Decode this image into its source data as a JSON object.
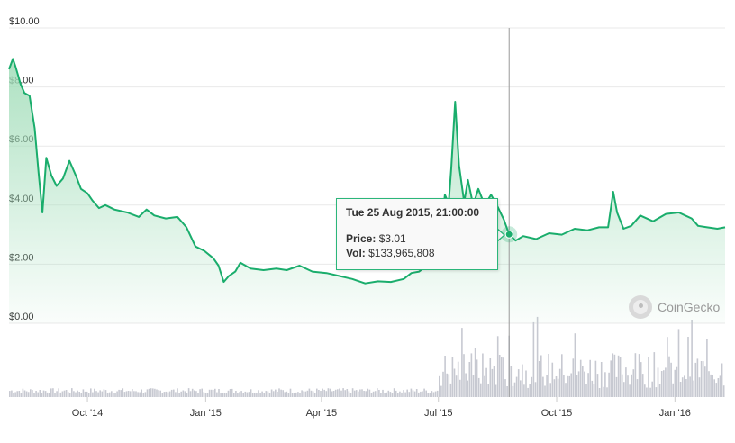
{
  "chart_data": {
    "type": "line",
    "title": "",
    "xlabel": "",
    "ylabel": "",
    "ylim": [
      0,
      10
    ],
    "grid": true,
    "y_ticks": [
      "$0.00",
      "$2.00",
      "$4.00",
      "$6.00",
      "$8.00",
      "$10.00"
    ],
    "x_ticks": [
      "Oct '14",
      "Jan '15",
      "Apr '15",
      "Jul '15",
      "Oct '15",
      "Jan '16"
    ],
    "colors": {
      "line": "#1aad6c",
      "fill": "#bfe9cf",
      "volume": "#c7c9d1",
      "crosshair": "#9a9a9a"
    },
    "series": [
      {
        "name": "Price",
        "points": [
          [
            "2014-08-01",
            8.6
          ],
          [
            "2014-08-04",
            8.95
          ],
          [
            "2014-08-06",
            8.7
          ],
          [
            "2014-08-08",
            8.4
          ],
          [
            "2014-08-10",
            8.1
          ],
          [
            "2014-08-13",
            7.8
          ],
          [
            "2014-08-17",
            7.7
          ],
          [
            "2014-08-21",
            6.6
          ],
          [
            "2014-08-24",
            5.1
          ],
          [
            "2014-08-27",
            3.75
          ],
          [
            "2014-08-30",
            5.6
          ],
          [
            "2014-09-03",
            5.0
          ],
          [
            "2014-09-07",
            4.65
          ],
          [
            "2014-09-12",
            4.9
          ],
          [
            "2014-09-17",
            5.5
          ],
          [
            "2014-09-22",
            5.0
          ],
          [
            "2014-09-26",
            4.55
          ],
          [
            "2014-10-01",
            4.4
          ],
          [
            "2014-10-05",
            4.15
          ],
          [
            "2014-10-10",
            3.9
          ],
          [
            "2014-10-15",
            4.0
          ],
          [
            "2014-10-22",
            3.85
          ],
          [
            "2014-11-01",
            3.75
          ],
          [
            "2014-11-10",
            3.6
          ],
          [
            "2014-11-16",
            3.85
          ],
          [
            "2014-11-22",
            3.65
          ],
          [
            "2014-12-01",
            3.55
          ],
          [
            "2014-12-10",
            3.6
          ],
          [
            "2014-12-17",
            3.25
          ],
          [
            "2014-12-24",
            2.6
          ],
          [
            "2014-12-31",
            2.45
          ],
          [
            "2015-01-07",
            2.2
          ],
          [
            "2015-01-11",
            1.95
          ],
          [
            "2015-01-15",
            1.4
          ],
          [
            "2015-01-19",
            1.6
          ],
          [
            "2015-01-24",
            1.75
          ],
          [
            "2015-01-28",
            2.05
          ],
          [
            "2015-02-05",
            1.85
          ],
          [
            "2015-02-15",
            1.8
          ],
          [
            "2015-02-25",
            1.85
          ],
          [
            "2015-03-05",
            1.8
          ],
          [
            "2015-03-15",
            1.95
          ],
          [
            "2015-03-25",
            1.75
          ],
          [
            "2015-04-05",
            1.7
          ],
          [
            "2015-04-15",
            1.6
          ],
          [
            "2015-04-25",
            1.5
          ],
          [
            "2015-05-05",
            1.35
          ],
          [
            "2015-05-15",
            1.42
          ],
          [
            "2015-05-25",
            1.4
          ],
          [
            "2015-06-04",
            1.5
          ],
          [
            "2015-06-10",
            1.7
          ],
          [
            "2015-06-16",
            1.75
          ],
          [
            "2015-06-22",
            1.95
          ],
          [
            "2015-06-28",
            2.35
          ],
          [
            "2015-07-03",
            3.05
          ],
          [
            "2015-07-06",
            4.35
          ],
          [
            "2015-07-09",
            4.05
          ],
          [
            "2015-07-11",
            5.25
          ],
          [
            "2015-07-14",
            7.5
          ],
          [
            "2015-07-17",
            5.35
          ],
          [
            "2015-07-21",
            4.1
          ],
          [
            "2015-07-24",
            4.85
          ],
          [
            "2015-07-28",
            4.0
          ],
          [
            "2015-08-01",
            4.55
          ],
          [
            "2015-08-06",
            4.0
          ],
          [
            "2015-08-11",
            4.35
          ],
          [
            "2015-08-16",
            3.95
          ],
          [
            "2015-08-21",
            3.5
          ],
          [
            "2015-08-25",
            3.01
          ],
          [
            "2015-08-30",
            2.8
          ],
          [
            "2015-09-05",
            2.95
          ],
          [
            "2015-09-15",
            2.85
          ],
          [
            "2015-09-25",
            3.05
          ],
          [
            "2015-10-05",
            3.0
          ],
          [
            "2015-10-15",
            3.2
          ],
          [
            "2015-10-25",
            3.15
          ],
          [
            "2015-11-03",
            3.25
          ],
          [
            "2015-11-10",
            3.25
          ],
          [
            "2015-11-14",
            4.45
          ],
          [
            "2015-11-17",
            3.75
          ],
          [
            "2015-11-22",
            3.2
          ],
          [
            "2015-11-28",
            3.3
          ],
          [
            "2015-12-05",
            3.65
          ],
          [
            "2015-12-15",
            3.45
          ],
          [
            "2015-12-25",
            3.7
          ],
          [
            "2016-01-04",
            3.75
          ],
          [
            "2016-01-14",
            3.55
          ],
          [
            "2016-01-19",
            3.3
          ],
          [
            "2016-01-26",
            3.25
          ],
          [
            "2016-02-03",
            3.2
          ],
          [
            "2016-02-09",
            3.25
          ]
        ]
      },
      {
        "name": "Vol",
        "render": "bars",
        "bar_count": 380
      }
    ],
    "tooltip": {
      "title": "Tue 25 Aug 2015, 21:00:00",
      "price_label": "Price:",
      "price_value": "$3.01",
      "vol_label": "Vol:",
      "vol_value": "$133,965,808",
      "date": "2015-08-25",
      "price": 3.01
    },
    "watermark": {
      "text": "CoinGecko",
      "icon": "coingecko-logo-icon"
    }
  }
}
